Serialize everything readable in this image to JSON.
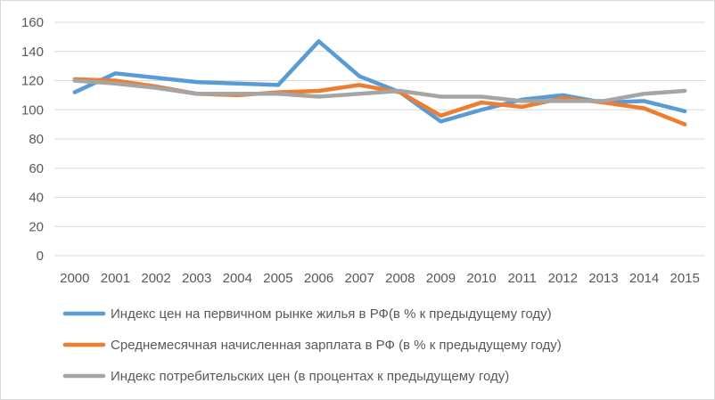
{
  "chart_data": {
    "type": "line",
    "title": "",
    "xlabel": "",
    "ylabel": "",
    "ylim": [
      0,
      160
    ],
    "yticks": [
      0,
      20,
      40,
      60,
      80,
      100,
      120,
      140,
      160
    ],
    "grid": true,
    "legend_position": "bottom",
    "categories": [
      "2000",
      "2001",
      "2002",
      "2003",
      "2004",
      "2005",
      "2006",
      "2007",
      "2008",
      "2009",
      "2010",
      "2011",
      "2012",
      "2013",
      "2014",
      "2015"
    ],
    "series": [
      {
        "name": "Индекс цен на первичном рынке жилья в РФ(в % к предыдущему году)",
        "color": "#5B9BD5",
        "values": [
          112,
          125,
          122,
          119,
          118,
          117,
          147,
          123,
          112,
          92,
          100,
          107,
          110,
          105,
          106,
          99
        ]
      },
      {
        "name": "Среднемесячная начисленная зарплата в РФ  (в % к предыдущему году)",
        "color": "#ED7D31",
        "values": [
          121,
          120,
          116,
          111,
          110,
          112,
          113,
          117,
          112,
          96,
          105,
          102,
          108,
          105,
          101,
          90
        ]
      },
      {
        "name": "Индекс потребительских цен (в процентах к предыдущему году)",
        "color": "#A5A5A5",
        "values": [
          120,
          118,
          115,
          111,
          111,
          111,
          109,
          111,
          113,
          109,
          109,
          106,
          106,
          106,
          111,
          113
        ]
      }
    ]
  }
}
